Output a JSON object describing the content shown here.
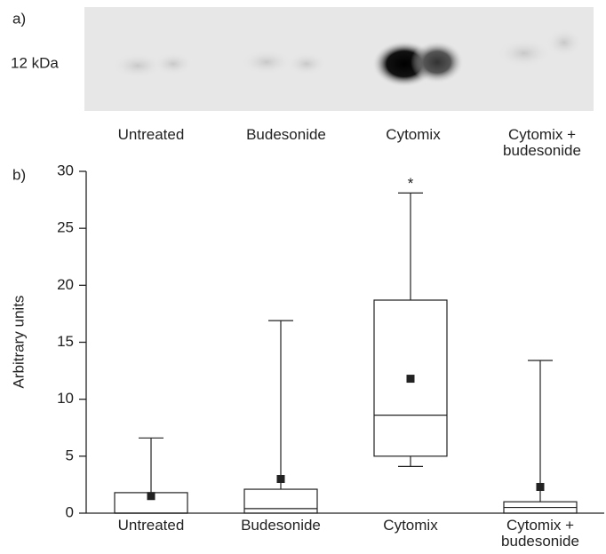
{
  "panel_a": {
    "label": "a)",
    "marker": "12 kDa",
    "lanes": [
      "Untreated",
      "Budesonide",
      "Cytomix",
      "Cytomix + budesonide"
    ]
  },
  "chart_data": {
    "type": "box",
    "panel_label": "b)",
    "y_label": "Arbitrary units",
    "categories": [
      "Untreated",
      "Budesonide",
      "Cytomix",
      "Cytomix + budesonide"
    ],
    "boxes": [
      {
        "min": 0,
        "q1": 0,
        "median": 0,
        "q3": 1.8,
        "max": 6.6,
        "mean": 1.5
      },
      {
        "min": 0,
        "q1": 0,
        "median": 0.4,
        "q3": 2.1,
        "max": 16.9,
        "mean": 3.0
      },
      {
        "min": 4.1,
        "q1": 5.0,
        "median": 8.6,
        "q3": 18.7,
        "max": 28.1,
        "mean": 11.8
      },
      {
        "min": 0,
        "q1": 0,
        "median": 0.5,
        "q3": 1.0,
        "max": 13.4,
        "mean": 2.3
      }
    ],
    "annotations": [
      {
        "text": "*"
      }
    ],
    "color": "#222222",
    "ylim": [
      0,
      30
    ],
    "yticks": [
      0,
      5,
      10,
      15,
      20,
      25,
      30
    ]
  }
}
